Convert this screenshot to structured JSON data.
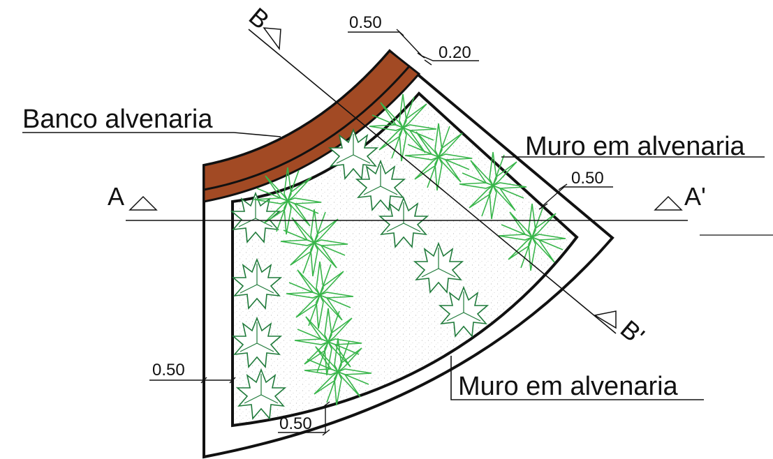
{
  "labels": {
    "bench": "Banco alvenaria",
    "wall_top": "Muro em alvenaria",
    "wall_bottom": "Muro em alvenaria"
  },
  "dimensions": {
    "top_outer": "0.50",
    "top_inner": "0.20",
    "right_wall": "0.50",
    "left_wall": "0.50",
    "bottom_wall": "0.50"
  },
  "sections": {
    "a": "A",
    "a_prime": "A'",
    "b": "B",
    "b_prime": "B'"
  },
  "colors": {
    "bench": "#a24a24",
    "plant_dark": "#1f7a3a",
    "plant_light": "#38b54a",
    "line": "#111111"
  }
}
